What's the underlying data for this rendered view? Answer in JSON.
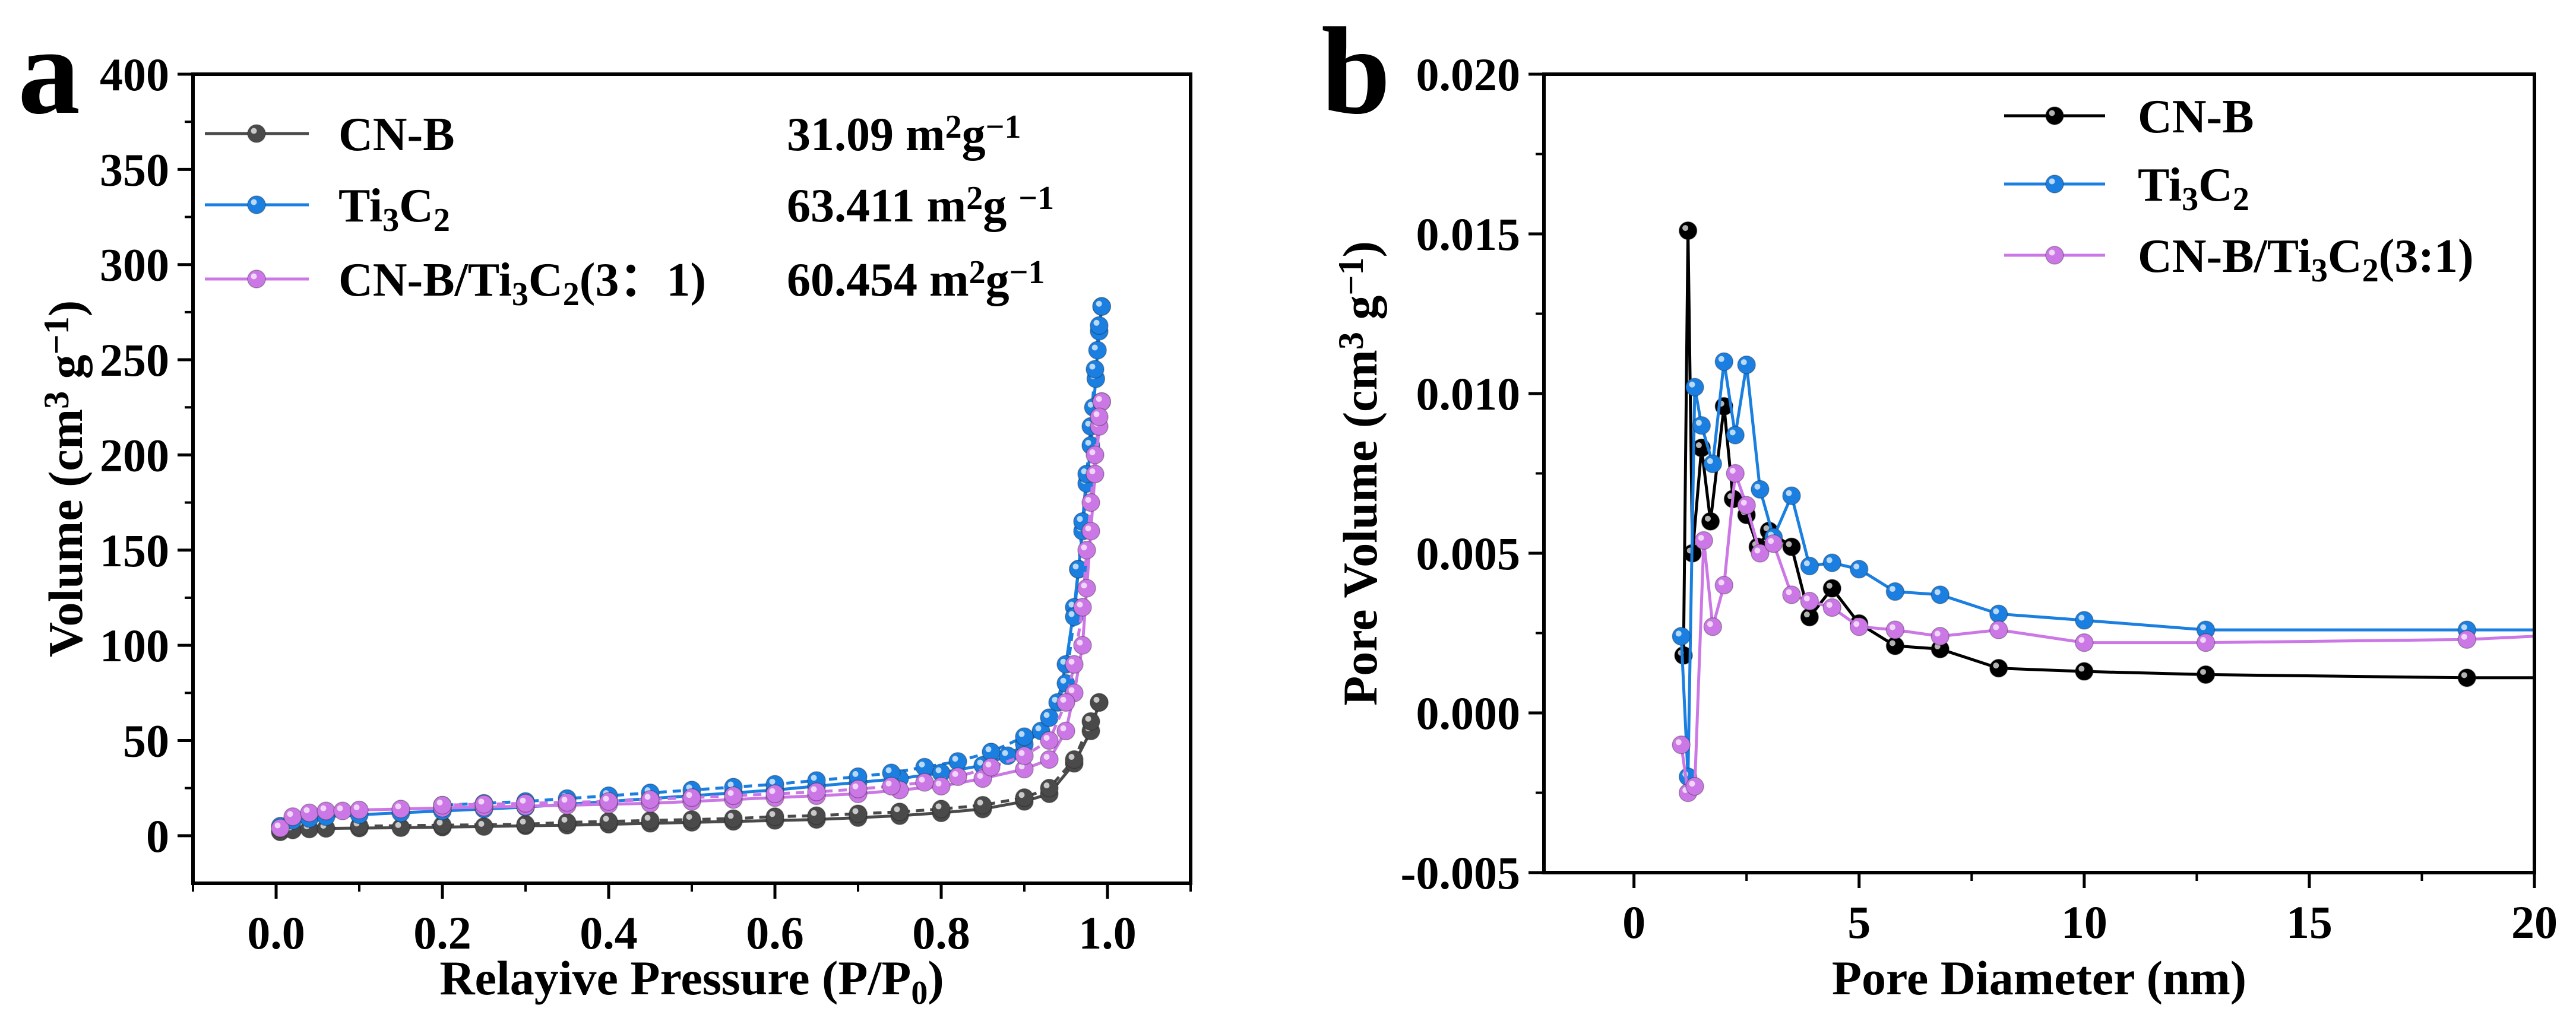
{
  "chart_data": [
    {
      "panel": "a",
      "type": "line",
      "xlabel": "Relayive Pressure (P/P",
      "xlabel_sub": "0",
      "xlabel_end": ")",
      "ylabel": "Volume (cm",
      "ylabel_sup": "3",
      "ylabel_mid": " g",
      "ylabel_sup2": "−1",
      "ylabel_end": ")",
      "xlim": [
        -0.1,
        1.1
      ],
      "ylim": [
        -25,
        400
      ],
      "xticks": [
        0.0,
        0.2,
        0.4,
        0.6,
        0.8,
        1.0
      ],
      "xtick_labels": [
        "0.0",
        "0.2",
        "0.4",
        "0.6",
        "0.8",
        "1.0"
      ],
      "yticks": [
        0,
        50,
        100,
        150,
        200,
        250,
        300,
        350,
        400
      ],
      "ytick_labels": [
        "0",
        "50",
        "100",
        "150",
        "200",
        "250",
        "300",
        "350",
        "400"
      ],
      "legend": [
        {
          "pre": "CN-B",
          "s1": "",
          "mid": "",
          "s2": "",
          "post": "",
          "color": "#4a4a4a",
          "bet": "31.09 m",
          "bet_sup": "2",
          "bet_post": "g",
          "bet_sup2": "−1"
        },
        {
          "pre": "Ti",
          "s1": "3",
          "mid": "C",
          "s2": "2",
          "post": "",
          "color": "#1a7fe0",
          "bet": "63.411 m",
          "bet_sup": "2",
          "bet_post": "g ",
          "bet_sup2": "−1"
        },
        {
          "pre": "CN-B/Ti",
          "s1": "3",
          "mid": "C",
          "s2": "2",
          "post": "(3：1)",
          "color": "#cc77e6",
          "bet": "60.454 m",
          "bet_sup": "2",
          "bet_post": "g",
          "bet_sup2": "−1"
        }
      ],
      "series": [
        {
          "name": "CN-B",
          "color": "#4a4a4a",
          "adsorption": [
            [
              0.005,
              2
            ],
            [
              0.02,
              3
            ],
            [
              0.04,
              3.5
            ],
            [
              0.06,
              3.8
            ],
            [
              0.1,
              4
            ],
            [
              0.15,
              4.2
            ],
            [
              0.2,
              4.5
            ],
            [
              0.25,
              4.8
            ],
            [
              0.3,
              5.2
            ],
            [
              0.35,
              5.5
            ],
            [
              0.4,
              6
            ],
            [
              0.45,
              6.5
            ],
            [
              0.5,
              7
            ],
            [
              0.55,
              7.5
            ],
            [
              0.6,
              8
            ],
            [
              0.65,
              8.5
            ],
            [
              0.7,
              9.5
            ],
            [
              0.75,
              10.5
            ],
            [
              0.8,
              12
            ],
            [
              0.85,
              14
            ],
            [
              0.9,
              18
            ],
            [
              0.93,
              22
            ],
            [
              0.96,
              38
            ],
            [
              0.98,
              55
            ],
            [
              0.99,
              70
            ]
          ],
          "desorption": [
            [
              0.99,
              70
            ],
            [
              0.98,
              60
            ],
            [
              0.96,
              40
            ],
            [
              0.93,
              25
            ],
            [
              0.9,
              20
            ],
            [
              0.85,
              16
            ],
            [
              0.8,
              14
            ],
            [
              0.75,
              12.5
            ],
            [
              0.7,
              11.5
            ],
            [
              0.65,
              10.5
            ],
            [
              0.6,
              10
            ],
            [
              0.55,
              9
            ],
            [
              0.5,
              8.5
            ],
            [
              0.45,
              8
            ],
            [
              0.4,
              7.5
            ],
            [
              0.35,
              7
            ],
            [
              0.3,
              6
            ],
            [
              0.2,
              5.5
            ],
            [
              0.1,
              5
            ]
          ]
        },
        {
          "name": "Ti3C2",
          "color": "#1a7fe0",
          "adsorption": [
            [
              0.005,
              5
            ],
            [
              0.02,
              8
            ],
            [
              0.04,
              9
            ],
            [
              0.06,
              10
            ],
            [
              0.1,
              11
            ],
            [
              0.15,
              12
            ],
            [
              0.2,
              13
            ],
            [
              0.25,
              14
            ],
            [
              0.3,
              15
            ],
            [
              0.35,
              16.5
            ],
            [
              0.4,
              18
            ],
            [
              0.45,
              19.5
            ],
            [
              0.5,
              21
            ],
            [
              0.55,
              22.5
            ],
            [
              0.6,
              24
            ],
            [
              0.65,
              26
            ],
            [
              0.7,
              28
            ],
            [
              0.75,
              30
            ],
            [
              0.8,
              33
            ],
            [
              0.85,
              37
            ],
            [
              0.88,
              42
            ],
            [
              0.9,
              48
            ],
            [
              0.92,
              55
            ],
            [
              0.94,
              70
            ],
            [
              0.95,
              90
            ],
            [
              0.96,
              120
            ],
            [
              0.965,
              140
            ],
            [
              0.97,
              160
            ],
            [
              0.975,
              185
            ],
            [
              0.98,
              205
            ],
            [
              0.983,
              225
            ],
            [
              0.986,
              240
            ],
            [
              0.988,
              255
            ],
            [
              0.99,
              265
            ],
            [
              0.993,
              278
            ]
          ],
          "desorption": [
            [
              0.993,
              278
            ],
            [
              0.99,
              268
            ],
            [
              0.985,
              245
            ],
            [
              0.98,
              215
            ],
            [
              0.975,
              190
            ],
            [
              0.97,
              165
            ],
            [
              0.965,
              140
            ],
            [
              0.96,
              115
            ],
            [
              0.95,
              80
            ],
            [
              0.93,
              62
            ],
            [
              0.9,
              52
            ],
            [
              0.86,
              44
            ],
            [
              0.82,
              39
            ],
            [
              0.78,
              36
            ],
            [
              0.74,
              33
            ],
            [
              0.7,
              31
            ],
            [
              0.65,
              29
            ],
            [
              0.6,
              27
            ],
            [
              0.55,
              25.5
            ],
            [
              0.5,
              24
            ],
            [
              0.45,
              22.5
            ],
            [
              0.4,
              21
            ],
            [
              0.35,
              19.5
            ],
            [
              0.3,
              18
            ],
            [
              0.25,
              17
            ],
            [
              0.2,
              16
            ]
          ]
        },
        {
          "name": "CN-B/Ti3C2(3:1)",
          "color": "#cc77e6",
          "adsorption": [
            [
              0.005,
              4
            ],
            [
              0.02,
              10
            ],
            [
              0.04,
              12
            ],
            [
              0.06,
              13
            ],
            [
              0.08,
              13
            ],
            [
              0.1,
              13.5
            ],
            [
              0.15,
              14
            ],
            [
              0.2,
              14.5
            ],
            [
              0.25,
              15
            ],
            [
              0.3,
              15.5
            ],
            [
              0.35,
              16
            ],
            [
              0.4,
              16.5
            ],
            [
              0.45,
              17
            ],
            [
              0.5,
              18
            ],
            [
              0.55,
              19
            ],
            [
              0.6,
              20
            ],
            [
              0.65,
              21
            ],
            [
              0.7,
              22
            ],
            [
              0.75,
              24
            ],
            [
              0.8,
              26
            ],
            [
              0.85,
              30
            ],
            [
              0.9,
              35
            ],
            [
              0.93,
              40
            ],
            [
              0.95,
              55
            ],
            [
              0.96,
              75
            ],
            [
              0.97,
              100
            ],
            [
              0.975,
              130
            ],
            [
              0.98,
              160
            ],
            [
              0.985,
              190
            ],
            [
              0.99,
              215
            ],
            [
              0.993,
              228
            ]
          ],
          "desorption": [
            [
              0.993,
              228
            ],
            [
              0.99,
              220
            ],
            [
              0.985,
              200
            ],
            [
              0.98,
              175
            ],
            [
              0.975,
              150
            ],
            [
              0.97,
              120
            ],
            [
              0.96,
              90
            ],
            [
              0.95,
              70
            ],
            [
              0.93,
              50
            ],
            [
              0.9,
              42
            ],
            [
              0.86,
              36
            ],
            [
              0.82,
              31
            ],
            [
              0.78,
              28
            ],
            [
              0.74,
              26
            ],
            [
              0.7,
              24.5
            ],
            [
              0.65,
              23
            ],
            [
              0.6,
              22
            ],
            [
              0.55,
              21
            ],
            [
              0.5,
              20
            ],
            [
              0.45,
              19
            ],
            [
              0.4,
              18
            ],
            [
              0.35,
              17.5
            ],
            [
              0.3,
              17
            ],
            [
              0.25,
              16.5
            ],
            [
              0.2,
              16
            ]
          ]
        }
      ]
    },
    {
      "panel": "b",
      "type": "line",
      "xlabel": "Pore Diameter (nm)",
      "ylabel": "Pore Volume (cm",
      "ylabel_sup": "3",
      "ylabel_mid": " g",
      "ylabel_sup2": "−1",
      "ylabel_end": ")",
      "xlim": [
        -2,
        20
      ],
      "ylim": [
        -0.005,
        0.02
      ],
      "xticks": [
        0,
        5,
        10,
        15,
        20
      ],
      "xtick_labels": [
        "0",
        "5",
        "10",
        "15",
        "20"
      ],
      "yticks": [
        -0.005,
        0.0,
        0.005,
        0.01,
        0.015,
        0.02
      ],
      "ytick_labels": [
        "-0.005",
        "0.000",
        "0.005",
        "0.010",
        "0.015",
        "0.020"
      ],
      "legend": [
        {
          "pre": "CN-B",
          "s1": "",
          "mid": "",
          "s2": "",
          "post": "",
          "color": "#000000"
        },
        {
          "pre": "Ti",
          "s1": "3",
          "mid": "C",
          "s2": "2",
          "post": "",
          "color": "#1a7fe0"
        },
        {
          "pre": "CN-B/Ti",
          "s1": "3",
          "mid": "C",
          "s2": "2",
          "post": "(3:1)",
          "color": "#cc77e6"
        }
      ],
      "series": [
        {
          "name": "CN-B",
          "color": "#000000",
          "points": [
            [
              1.1,
              0.0018
            ],
            [
              1.2,
              0.0151
            ],
            [
              1.3,
              0.005
            ],
            [
              1.5,
              0.0083
            ],
            [
              1.7,
              0.006
            ],
            [
              2.0,
              0.0096
            ],
            [
              2.2,
              0.0067
            ],
            [
              2.5,
              0.0062
            ],
            [
              2.75,
              0.0052
            ],
            [
              3.0,
              0.0057
            ],
            [
              3.5,
              0.0052
            ],
            [
              3.9,
              0.003
            ],
            [
              4.4,
              0.0039
            ],
            [
              5.0,
              0.0028
            ],
            [
              5.8,
              0.0021
            ],
            [
              6.8,
              0.002
            ],
            [
              8.1,
              0.0014
            ],
            [
              10.0,
              0.0013
            ],
            [
              12.7,
              0.0012
            ],
            [
              18.5,
              0.0011
            ],
            [
              20.0,
              0.0011
            ]
          ]
        },
        {
          "name": "Ti3C2",
          "color": "#1a7fe0",
          "points": [
            [
              1.05,
              0.0024
            ],
            [
              1.2,
              -0.002
            ],
            [
              1.35,
              0.0102
            ],
            [
              1.5,
              0.009
            ],
            [
              1.75,
              0.0078
            ],
            [
              2.0,
              0.011
            ],
            [
              2.25,
              0.0087
            ],
            [
              2.5,
              0.0109
            ],
            [
              2.8,
              0.007
            ],
            [
              3.1,
              0.0055
            ],
            [
              3.5,
              0.0068
            ],
            [
              3.9,
              0.0046
            ],
            [
              4.4,
              0.0047
            ],
            [
              5.0,
              0.0045
            ],
            [
              5.8,
              0.0038
            ],
            [
              6.8,
              0.0037
            ],
            [
              8.1,
              0.0031
            ],
            [
              10.0,
              0.0029
            ],
            [
              12.7,
              0.0026
            ],
            [
              18.5,
              0.0026
            ],
            [
              20.0,
              0.0026
            ]
          ]
        },
        {
          "name": "CN-B/Ti3C2(3:1)",
          "color": "#cc77e6",
          "points": [
            [
              1.05,
              -0.001
            ],
            [
              1.2,
              -0.0025
            ],
            [
              1.35,
              -0.0023
            ],
            [
              1.55,
              0.0054
            ],
            [
              1.75,
              0.0027
            ],
            [
              2.0,
              0.004
            ],
            [
              2.25,
              0.0075
            ],
            [
              2.5,
              0.0065
            ],
            [
              2.8,
              0.005
            ],
            [
              3.1,
              0.0053
            ],
            [
              3.5,
              0.0037
            ],
            [
              3.9,
              0.0035
            ],
            [
              4.4,
              0.0033
            ],
            [
              5.0,
              0.0027
            ],
            [
              5.8,
              0.0026
            ],
            [
              6.8,
              0.0024
            ],
            [
              8.1,
              0.0026
            ],
            [
              10.0,
              0.0022
            ],
            [
              12.7,
              0.0022
            ],
            [
              18.5,
              0.0023
            ],
            [
              20.0,
              0.0024
            ]
          ]
        }
      ]
    }
  ]
}
